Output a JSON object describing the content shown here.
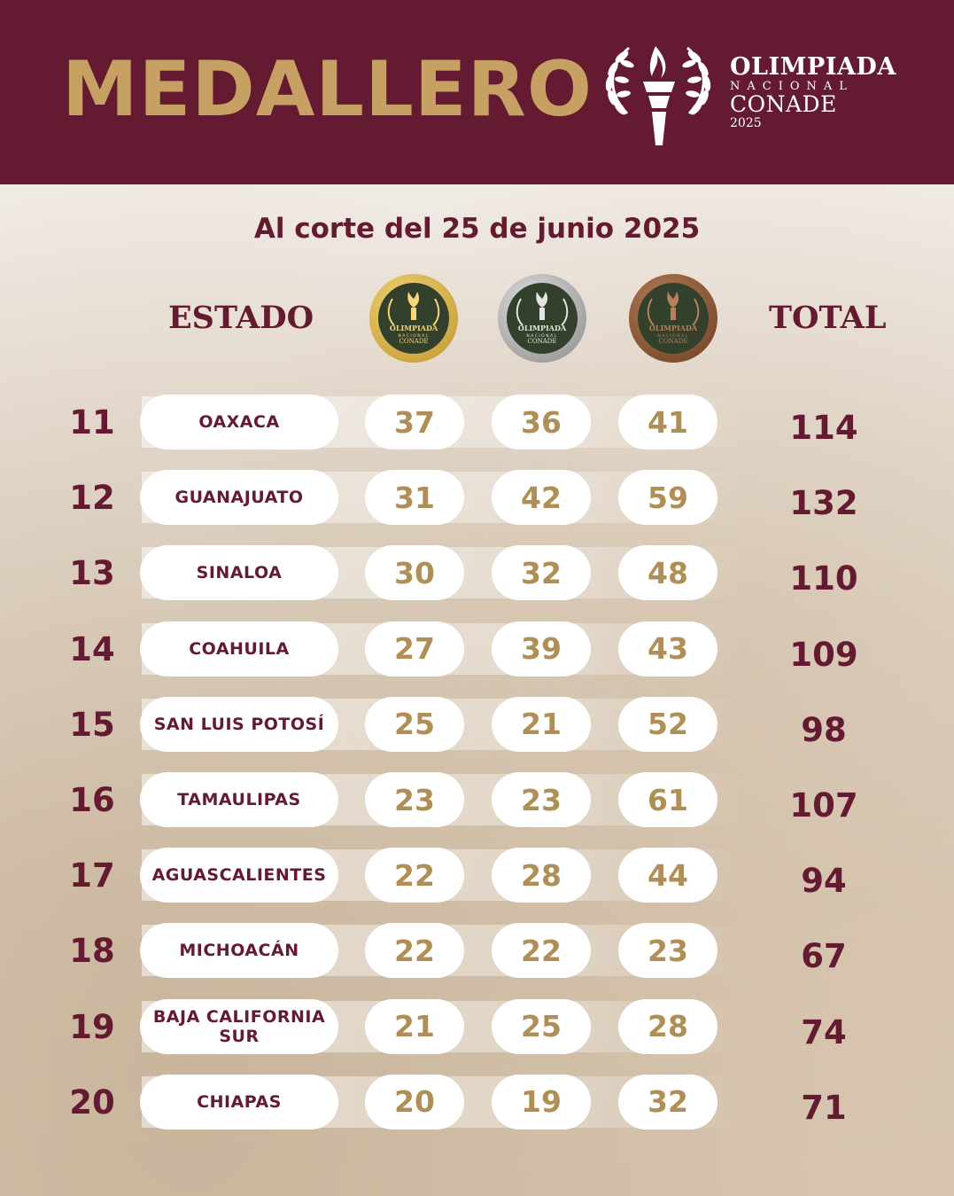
{
  "header": {
    "title": "MEDALLERO",
    "logo": {
      "line1": "OLIMPIADA",
      "line2": "NACIONAL",
      "line3": "CONADE",
      "line4": "2025"
    }
  },
  "subtitle": "Al corte del 25 de junio 2025",
  "columns": {
    "state": "ESTADO",
    "total": "TOTAL",
    "gold_medal_icon": "gold-medal-icon",
    "silver_medal_icon": "silver-medal-icon",
    "bronze_medal_icon": "bronze-medal-icon",
    "medal_text_1": "OLIMPIADA",
    "medal_text_2": "NACIONAL",
    "medal_text_3": "CONADE"
  },
  "colors": {
    "brand_maroon": "#641a30",
    "gold_text": "#b08f57",
    "title_gold": "#c7a063"
  },
  "rows": [
    {
      "rank": "11",
      "state": "OAXACA",
      "gold": "37",
      "silver": "36",
      "bronze": "41",
      "total": "114"
    },
    {
      "rank": "12",
      "state": "GUANAJUATO",
      "gold": "31",
      "silver": "42",
      "bronze": "59",
      "total": "132"
    },
    {
      "rank": "13",
      "state": "SINALOA",
      "gold": "30",
      "silver": "32",
      "bronze": "48",
      "total": "110"
    },
    {
      "rank": "14",
      "state": "COAHUILA",
      "gold": "27",
      "silver": "39",
      "bronze": "43",
      "total": "109"
    },
    {
      "rank": "15",
      "state": "SAN LUIS POTOSÍ",
      "gold": "25",
      "silver": "21",
      "bronze": "52",
      "total": "98"
    },
    {
      "rank": "16",
      "state": "TAMAULIPAS",
      "gold": "23",
      "silver": "23",
      "bronze": "61",
      "total": "107"
    },
    {
      "rank": "17",
      "state": "AGUASCALIENTES",
      "gold": "22",
      "silver": "28",
      "bronze": "44",
      "total": "94"
    },
    {
      "rank": "18",
      "state": "MICHOACÁN",
      "gold": "22",
      "silver": "22",
      "bronze": "23",
      "total": "67"
    },
    {
      "rank": "19",
      "state": "BAJA CALIFORNIA SUR",
      "gold": "21",
      "silver": "25",
      "bronze": "28",
      "total": "74"
    },
    {
      "rank": "20",
      "state": "CHIAPAS",
      "gold": "20",
      "silver": "19",
      "bronze": "32",
      "total": "71"
    }
  ]
}
